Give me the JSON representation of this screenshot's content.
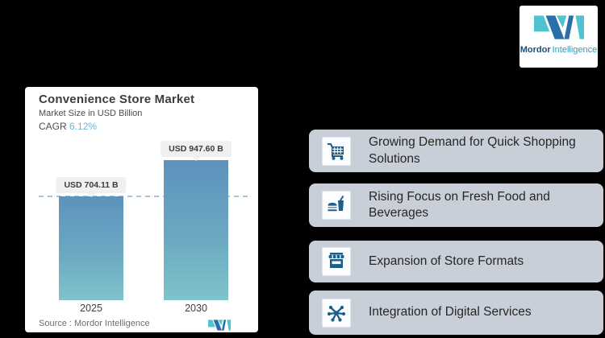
{
  "brand": {
    "name_primary": "Mordor",
    "name_secondary": "Intelligence"
  },
  "chart_card": {
    "title": "Convenience Store Market",
    "subtitle": "Market Size in USD Billion",
    "cagr_label": "CAGR",
    "cagr_value": "6.12%",
    "source": "Source :  Mordor Intelligence"
  },
  "chart_data": {
    "type": "bar",
    "title": "Convenience Store Market",
    "ylabel": "Market Size in USD Billion",
    "categories": [
      "2025",
      "2030"
    ],
    "values": [
      704.11,
      947.6
    ],
    "value_labels": [
      "USD 704.11 B",
      "USD 947.60 B"
    ],
    "unit": "USD Billion",
    "cagr_percent": 6.12,
    "reference_line": {
      "at_value": 704.11,
      "style": "dashed",
      "color": "#a5c6da"
    },
    "bar_gradient_top": "#5d92bc",
    "bar_gradient_bottom": "#7fc3ca",
    "grid": false,
    "legend": false
  },
  "drivers": {
    "items": [
      {
        "icon": "shopping-cart-icon",
        "label": "Growing Demand for Quick Shopping Solutions"
      },
      {
        "icon": "fast-food-icon",
        "label": "Rising Focus on Fresh Food and Beverages"
      },
      {
        "icon": "storefront-icon",
        "label": "Expansion of Store Formats"
      },
      {
        "icon": "digital-network-icon",
        "label": "Integration of Digital Services"
      }
    ]
  },
  "colors": {
    "background": "#000000",
    "card": "#ffffff",
    "driver_card": "#c9cfd9",
    "icon_blue": "#1c5d8c",
    "accent_light_blue": "#6db4d8",
    "logo_blue": "#2a6fab",
    "logo_teal": "#4fc3cf",
    "dashed_line": "#a5c6da"
  }
}
